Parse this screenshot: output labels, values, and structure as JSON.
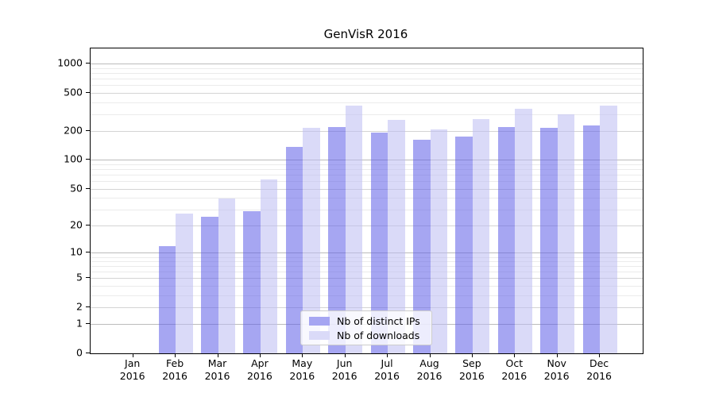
{
  "title": "GenVisR 2016",
  "chart_data": {
    "type": "bar",
    "title": "GenVisR 2016",
    "categories": [
      "Jan 2016",
      "Feb 2016",
      "Mar 2016",
      "Apr 2016",
      "May 2016",
      "Jun 2016",
      "Jul 2016",
      "Aug 2016",
      "Sep 2016",
      "Oct 2016",
      "Nov 2016",
      "Dec 2016"
    ],
    "series": [
      {
        "name": "Nb of distinct IPs",
        "values": [
          0,
          12,
          25,
          29,
          137,
          220,
          192,
          162,
          177,
          219,
          215,
          229
        ],
        "fill": "rgba(93,93,231,0.55)",
        "legend_color": "#a6a6f2"
      },
      {
        "name": "Nb of downloads",
        "values": [
          0,
          27,
          39,
          63,
          218,
          366,
          264,
          210,
          265,
          339,
          301,
          366
        ],
        "fill": "rgba(188,188,242,0.55)",
        "legend_color": "#dadaf8"
      }
    ],
    "yscale": "log1p",
    "yticks": [
      0,
      1,
      2,
      5,
      10,
      20,
      50,
      100,
      200,
      500,
      1000
    ],
    "ylim": [
      0,
      1450
    ],
    "grid": "on",
    "legend_position": "lower center inside",
    "xlabel": "",
    "ylabel": ""
  }
}
